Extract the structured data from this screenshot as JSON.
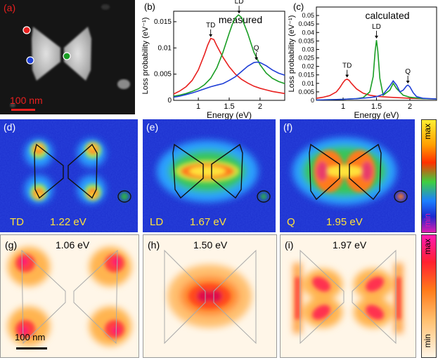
{
  "panels": {
    "a": {
      "label": "(a)",
      "scalebar": "100 nm"
    },
    "b": {
      "label": "(b)",
      "title": "measured"
    },
    "c": {
      "label": "(c)",
      "title": "calculated"
    },
    "d": {
      "label": "(d)",
      "mode": "TD",
      "energy": "1.22 eV"
    },
    "e": {
      "label": "(e)",
      "mode": "LD",
      "energy": "1.67 eV"
    },
    "f": {
      "label": "(f)",
      "mode": "Q",
      "energy": "1.95 eV"
    },
    "g": {
      "label": "(g)",
      "energy": "1.06 eV",
      "scalebar": "100 nm"
    },
    "h": {
      "label": "(h)",
      "energy": "1.50 eV"
    },
    "i": {
      "label": "(i)",
      "energy": "1.97 eV"
    }
  },
  "colorbars": {
    "top": {
      "max": "max",
      "min": "min"
    },
    "bottom": {
      "max": "max",
      "min": "min"
    }
  },
  "colors": {
    "red": "#e8201f",
    "green": "#1a9e25",
    "blue": "#1f3fd6"
  },
  "chart_data": [
    {
      "type": "line",
      "panel": "b",
      "title": "measured",
      "xlabel": "Energy (eV)",
      "ylabel": "Loss probability (eV⁻¹)",
      "xlim": [
        0.6,
        2.4
      ],
      "ylim": [
        0,
        0.017
      ],
      "xticks": [
        "1",
        "1.5",
        "2"
      ],
      "yticks": [
        "0",
        "0.005",
        "0.01",
        "0.015"
      ],
      "annotations": [
        "TD",
        "LD",
        "Q"
      ],
      "series": [
        {
          "name": "red",
          "x": [
            0.6,
            0.7,
            0.8,
            0.9,
            1.0,
            1.1,
            1.15,
            1.2,
            1.25,
            1.3,
            1.4,
            1.5,
            1.6,
            1.7,
            1.8,
            1.9,
            2.0,
            2.1,
            2.2,
            2.3,
            2.4
          ],
          "y": [
            0.0012,
            0.0018,
            0.0026,
            0.0038,
            0.0058,
            0.0088,
            0.0105,
            0.0118,
            0.0116,
            0.0104,
            0.0082,
            0.0064,
            0.005,
            0.004,
            0.0033,
            0.0027,
            0.0023,
            0.002,
            0.0017,
            0.0015,
            0.0013
          ]
        },
        {
          "name": "green",
          "x": [
            0.6,
            0.7,
            0.8,
            0.9,
            1.0,
            1.1,
            1.2,
            1.3,
            1.4,
            1.5,
            1.55,
            1.6,
            1.65,
            1.7,
            1.8,
            1.9,
            2.0,
            2.1,
            2.2,
            2.3,
            2.4
          ],
          "y": [
            0.0008,
            0.001,
            0.0013,
            0.0017,
            0.0022,
            0.003,
            0.0042,
            0.0062,
            0.0092,
            0.0128,
            0.0145,
            0.0157,
            0.0163,
            0.0158,
            0.0128,
            0.0092,
            0.0068,
            0.0052,
            0.0042,
            0.0036,
            0.0032
          ]
        },
        {
          "name": "blue",
          "x": [
            0.6,
            0.7,
            0.8,
            0.9,
            1.0,
            1.1,
            1.2,
            1.3,
            1.4,
            1.5,
            1.6,
            1.7,
            1.8,
            1.9,
            1.95,
            2.0,
            2.1,
            2.2,
            2.3,
            2.4
          ],
          "y": [
            0.0006,
            0.0008,
            0.0011,
            0.0014,
            0.0018,
            0.0022,
            0.0026,
            0.0029,
            0.0032,
            0.0038,
            0.0045,
            0.0055,
            0.0065,
            0.0072,
            0.0073,
            0.0072,
            0.0066,
            0.0058,
            0.0052,
            0.0048
          ]
        }
      ]
    },
    {
      "type": "line",
      "panel": "c",
      "title": "calculated",
      "xlabel": "Energy (eV)",
      "ylabel": "Loss probability (eV⁻¹)",
      "xlim": [
        0.6,
        2.4
      ],
      "ylim": [
        0,
        0.055
      ],
      "xticks": [
        "1",
        "1.5",
        "2"
      ],
      "yticks": [
        "0",
        "0.005",
        "0.01",
        "0.015",
        "0.02",
        "0.025",
        "0.03",
        "0.035",
        "0.04",
        "0.045",
        "0.05"
      ],
      "annotations": [
        "TD",
        "LD",
        "Q"
      ],
      "series": [
        {
          "name": "red",
          "x": [
            0.6,
            0.7,
            0.8,
            0.9,
            0.95,
            1.0,
            1.03,
            1.06,
            1.09,
            1.12,
            1.2,
            1.3,
            1.4,
            1.5,
            1.6,
            1.7,
            1.8,
            1.9,
            2.0,
            2.2,
            2.4
          ],
          "y": [
            0.0012,
            0.0018,
            0.0028,
            0.005,
            0.0075,
            0.0105,
            0.012,
            0.0125,
            0.0118,
            0.0102,
            0.0068,
            0.0042,
            0.003,
            0.0024,
            0.0021,
            0.0018,
            0.0016,
            0.0014,
            0.0012,
            0.001,
            0.0008
          ]
        },
        {
          "name": "green",
          "x": [
            0.6,
            0.8,
            1.0,
            1.2,
            1.3,
            1.4,
            1.45,
            1.48,
            1.5,
            1.52,
            1.55,
            1.6,
            1.7,
            1.75,
            1.8,
            1.9,
            2.0,
            2.2,
            2.4
          ],
          "y": [
            0.0002,
            0.0004,
            0.0006,
            0.001,
            0.0016,
            0.005,
            0.014,
            0.029,
            0.0355,
            0.029,
            0.013,
            0.003,
            0.006,
            0.01,
            0.007,
            0.003,
            0.0018,
            0.001,
            0.0008
          ]
        },
        {
          "name": "blue",
          "x": [
            0.6,
            0.8,
            1.0,
            1.2,
            1.4,
            1.5,
            1.6,
            1.7,
            1.75,
            1.8,
            1.85,
            1.9,
            1.95,
            1.97,
            2.0,
            2.05,
            2.1,
            2.2,
            2.4
          ],
          "y": [
            0.0002,
            0.0004,
            0.0006,
            0.001,
            0.0016,
            0.0022,
            0.0035,
            0.0085,
            0.0115,
            0.009,
            0.005,
            0.006,
            0.0085,
            0.009,
            0.008,
            0.0045,
            0.0022,
            0.0012,
            0.0008
          ]
        }
      ]
    }
  ]
}
